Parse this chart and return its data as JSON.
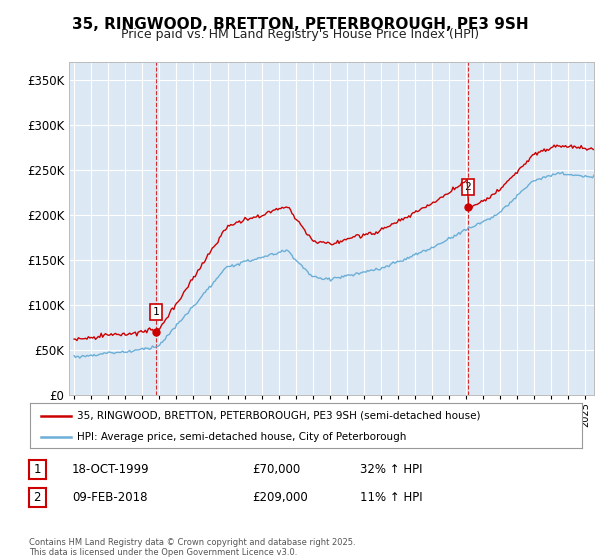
{
  "title": "35, RINGWOOD, BRETTON, PETERBOROUGH, PE3 9SH",
  "subtitle": "Price paid vs. HM Land Registry's House Price Index (HPI)",
  "title_fontsize": 11,
  "subtitle_fontsize": 9,
  "background_color": "#ffffff",
  "plot_bg_color": "#dce9f5",
  "grid_color": "#ffffff",
  "red_color": "#cc0000",
  "blue_color": "#6baed6",
  "purchase1_year": 1999.8,
  "purchase1_price": 70000,
  "purchase2_year": 2018.1,
  "purchase2_price": 209000,
  "ylim": [
    0,
    370000
  ],
  "yticks": [
    0,
    50000,
    100000,
    150000,
    200000,
    250000,
    300000,
    350000
  ],
  "xlim_start": 1994.7,
  "xlim_end": 2025.5,
  "legend_line1": "35, RINGWOOD, BRETTON, PETERBOROUGH, PE3 9SH (semi-detached house)",
  "legend_line2": "HPI: Average price, semi-detached house, City of Peterborough",
  "footnote": "Contains HM Land Registry data © Crown copyright and database right 2025.\nThis data is licensed under the Open Government Licence v3.0.",
  "table_row1": [
    "1",
    "18-OCT-1999",
    "£70,000",
    "32% ↑ HPI"
  ],
  "table_row2": [
    "2",
    "09-FEB-2018",
    "£209,000",
    "11% ↑ HPI"
  ]
}
